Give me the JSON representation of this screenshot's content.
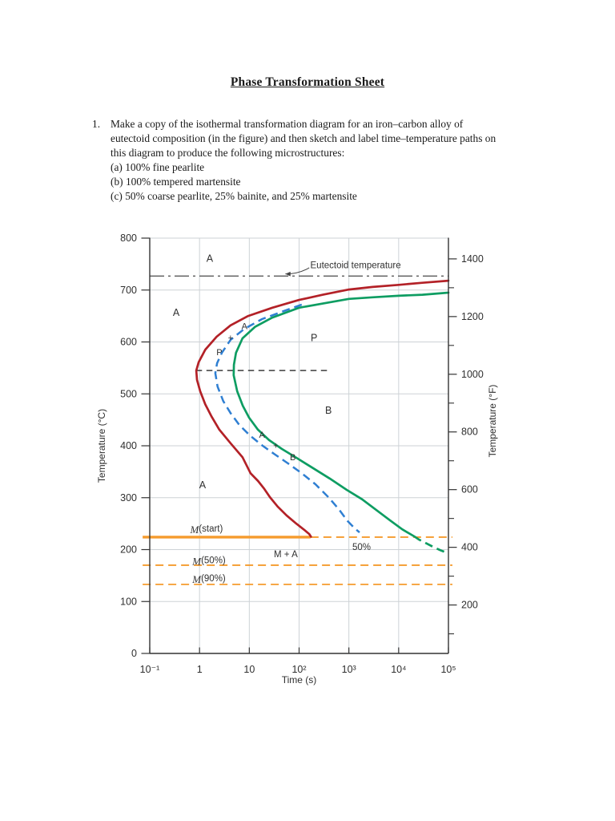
{
  "title": "Phase Transformation Sheet",
  "problem": {
    "number": "1.",
    "lines": [
      "Make a copy of the isothermal transformation diagram for an iron–carbon alloy of",
      "eutectoid composition (in the figure) and then sketch and label time–temperature paths on",
      "this diagram to produce the following microstructures:",
      "(a) 100% fine pearlite",
      "(b) 100% tempered martensite",
      "(c) 50% coarse pearlite, 25% bainite, and 25% martensite"
    ]
  },
  "chart_data": {
    "type": "line",
    "description": "Isothermal transformation (TTT) diagram for eutectoid iron-carbon alloy",
    "xlabel": "Time (s)",
    "ylabel_left": "Temperature (°C)",
    "ylabel_right": "Temperature (°F)",
    "x_scale": "log",
    "xlim": [
      0.1,
      100000
    ],
    "ylim_c": [
      0,
      800
    ],
    "grid": true,
    "x_ticks": [
      {
        "v": 0.1,
        "label": "10⁻¹"
      },
      {
        "v": 1,
        "label": "1"
      },
      {
        "v": 10,
        "label": "10"
      },
      {
        "v": 100,
        "label": "10²"
      },
      {
        "v": 1000,
        "label": "10³"
      },
      {
        "v": 10000,
        "label": "10⁴"
      },
      {
        "v": 100000,
        "label": "10⁵"
      }
    ],
    "y_ticks_c": [
      800,
      700,
      600,
      500,
      400,
      300,
      200,
      100,
      0
    ],
    "y_ticks_f_major": [
      1400,
      1200,
      1000,
      800,
      600,
      400,
      200
    ],
    "y_ticks_f_minor": [
      1300,
      1100,
      900,
      700,
      500,
      300,
      100
    ],
    "colors": {
      "grid": "#cdd2d6",
      "axis": "#333333",
      "text": "#2f2f2f",
      "start_curve": "#b32127",
      "end_curve": "#0e9d62",
      "fifty_curve": "#2f7fd2",
      "martensite_lines": "#f59b2d",
      "eutectoid_line": "#5a5a5a",
      "boundary_line": "#3c3c3c"
    },
    "series": [
      {
        "name": "transformation-start-curve",
        "color": "#b32127",
        "style": "solid",
        "width": 2.7,
        "points": [
          [
            100000,
            718
          ],
          [
            30000,
            714
          ],
          [
            10000,
            710
          ],
          [
            3000,
            706
          ],
          [
            1000,
            701
          ],
          [
            300,
            691
          ],
          [
            100,
            681
          ],
          [
            29,
            666
          ],
          [
            9.5,
            650
          ],
          [
            4.2,
            632
          ],
          [
            2.2,
            610
          ],
          [
            1.3,
            585
          ],
          [
            0.96,
            561
          ],
          [
            0.86,
            545
          ],
          [
            0.89,
            527
          ],
          [
            1.03,
            505
          ],
          [
            1.3,
            480
          ],
          [
            1.75,
            456
          ],
          [
            2.5,
            431
          ],
          [
            4.2,
            405
          ],
          [
            7.3,
            378
          ],
          [
            10.6,
            347
          ],
          [
            15,
            332
          ],
          [
            20,
            317
          ],
          [
            26,
            301
          ],
          [
            37,
            283
          ],
          [
            56,
            266
          ],
          [
            88,
            250
          ],
          [
            127,
            238
          ],
          [
            160,
            230
          ],
          [
            173,
            224.8
          ]
        ]
      },
      {
        "name": "transformation-end-curve",
        "color": "#0e9d62",
        "style": "solid",
        "width": 2.7,
        "points": [
          [
            100000,
            695
          ],
          [
            30000,
            691
          ],
          [
            10000,
            689
          ],
          [
            3000,
            686
          ],
          [
            1000,
            683
          ],
          [
            300,
            674
          ],
          [
            100,
            666
          ],
          [
            29,
            647
          ],
          [
            13,
            629
          ],
          [
            7.3,
            607
          ],
          [
            5.4,
            579
          ],
          [
            4.9,
            556
          ],
          [
            4.85,
            536
          ],
          [
            5.7,
            505
          ],
          [
            7.4,
            477
          ],
          [
            9.9,
            454
          ],
          [
            14.9,
            431
          ],
          [
            24.9,
            411
          ],
          [
            45,
            394
          ],
          [
            88,
            377
          ],
          [
            183,
            358
          ],
          [
            412,
            337
          ],
          [
            905,
            315
          ],
          [
            1840,
            297
          ],
          [
            3590,
            276
          ],
          [
            6760,
            256
          ],
          [
            11800,
            239
          ],
          [
            20600,
            225.5
          ]
        ]
      },
      {
        "name": "transformation-end-curve-extension",
        "color": "#0e9d62",
        "style": "dashed",
        "width": 2.7,
        "points": [
          [
            20600,
            225.5
          ],
          [
            26000,
            219
          ],
          [
            36000,
            212
          ],
          [
            50000,
            205
          ],
          [
            68000,
            199
          ],
          [
            86000,
            195
          ]
        ]
      },
      {
        "name": "fifty-percent-completion-curve",
        "color": "#2f7fd2",
        "style": "dashed",
        "width": 2.5,
        "points": [
          [
            113,
            672
          ],
          [
            45,
            658
          ],
          [
            18,
            644
          ],
          [
            7.9,
            625
          ],
          [
            4.2,
            604
          ],
          [
            2.8,
            579
          ],
          [
            2.25,
            559
          ],
          [
            2.08,
            540
          ],
          [
            2.3,
            514
          ],
          [
            3.0,
            486
          ],
          [
            4.2,
            463
          ],
          [
            6.3,
            440
          ],
          [
            10.2,
            420
          ],
          [
            18,
            401
          ],
          [
            32,
            384
          ],
          [
            60,
            366
          ],
          [
            113,
            347
          ],
          [
            212,
            326
          ],
          [
            388,
            301
          ],
          [
            626,
            278
          ],
          [
            943,
            255
          ],
          [
            1310,
            241
          ],
          [
            1640,
            233
          ]
        ]
      }
    ],
    "reference_lines": [
      {
        "name": "eutectoid-temperature-line",
        "T": 727,
        "t_from": 0.1,
        "t_to": 100000,
        "color": "#5a5a5a",
        "style": "dashdot",
        "width": 1.4
      },
      {
        "name": "pearlite-bainite-boundary-line",
        "T": 545,
        "t_from": 0.85,
        "t_to": 390,
        "color": "#3c3c3c",
        "style": "dashedfine",
        "width": 1.4
      },
      {
        "name": "m-start-line-solid",
        "T": 224,
        "t_from": 0.072,
        "t_to": 170,
        "color": "#f59b2d",
        "style": "solid",
        "width": 3.4
      },
      {
        "name": "m-start-line-dashed",
        "T": 224,
        "t_from": 170,
        "t_to": 120000,
        "color": "#f59b2d",
        "style": "dashed",
        "width": 1.8
      },
      {
        "name": "m-50-line",
        "T": 170,
        "t_from": 0.072,
        "t_to": 120000,
        "color": "#f59b2d",
        "style": "dashed",
        "width": 1.8
      },
      {
        "name": "m-90-line",
        "T": 133,
        "t_from": 0.072,
        "t_to": 120000,
        "color": "#f59b2d",
        "style": "dashed",
        "width": 1.8
      }
    ],
    "annotations": [
      {
        "text": "A",
        "t": 1.6,
        "T": 761,
        "size": 12.5
      },
      {
        "text": "Eutectoid temperature",
        "t": 168,
        "T": 747,
        "anchor": "start",
        "size": 11.5
      },
      {
        "text": "A",
        "t": 0.34,
        "T": 656,
        "size": 12.5
      },
      {
        "text": "A",
        "t": 8.0,
        "T": 629,
        "size": 11
      },
      {
        "text": "+",
        "t": 4.2,
        "T": 607,
        "size": 11
      },
      {
        "text": "P",
        "t": 2.5,
        "T": 579,
        "size": 11
      },
      {
        "text": "P",
        "t": 200,
        "T": 608,
        "size": 12.5
      },
      {
        "text": "B",
        "t": 390,
        "T": 468,
        "size": 12.5
      },
      {
        "text": "A",
        "t": 18,
        "T": 420,
        "size": 11
      },
      {
        "text": "+",
        "t": 34,
        "T": 399,
        "size": 11
      },
      {
        "text": "B",
        "t": 75,
        "T": 377,
        "size": 11
      },
      {
        "text": "A",
        "t": 1.15,
        "T": 324,
        "size": 12.5
      },
      {
        "text": "M(start)",
        "t": 1.38,
        "T": 239,
        "size": 11.5
      },
      {
        "text": "M + A",
        "t": 54,
        "T": 190,
        "size": 11.5
      },
      {
        "text": "50%",
        "t": 1800,
        "T": 204,
        "size": 11.5
      },
      {
        "text": "M(50%)",
        "t": 1.55,
        "T": 178,
        "size": 11.5
      },
      {
        "text": "M(90%)",
        "t": 1.55,
        "T": 144,
        "size": 11.5
      }
    ],
    "arrow": {
      "from_t": 160,
      "from_T": 743,
      "to_t": 53,
      "to_T": 731
    }
  }
}
